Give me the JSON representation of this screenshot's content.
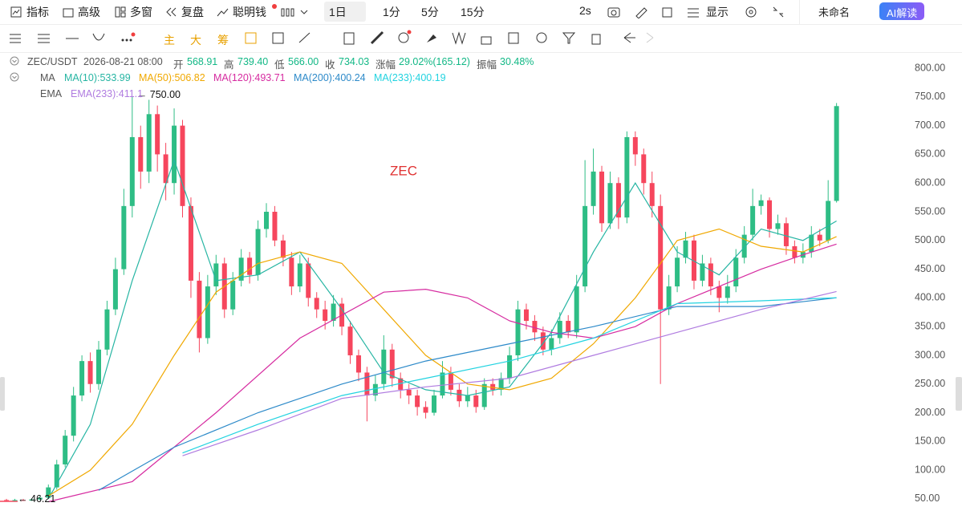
{
  "toolbar": {
    "top": [
      "指标",
      "高级",
      "多窗",
      "复盘",
      "聪明钱"
    ],
    "interval": "1日",
    "intervals": [
      "1分",
      "5分",
      "15分"
    ],
    "refresh": "2s",
    "display": "显示",
    "layout": "未命名",
    "ai": "AI解读"
  },
  "drawing_toolbar": {
    "main": "主",
    "big": "大",
    "chips": "筹"
  },
  "info": {
    "symbol": "ZEC/USDT",
    "time": "2026-08-21 08:00",
    "fields": [
      {
        "label": "开",
        "value": "568.91"
      },
      {
        "label": "高",
        "value": "739.40"
      },
      {
        "label": "低",
        "value": "566.00"
      },
      {
        "label": "收",
        "value": "734.03"
      },
      {
        "label": "涨幅",
        "value": "29.02%(165.12)"
      },
      {
        "label": "振幅",
        "value": "30.48%"
      }
    ],
    "ma_label": "MA",
    "ma_items": [
      "MA(10):533.99",
      "MA(50):506.82",
      "MA(120):493.71",
      "MA(200):400.24",
      "MA(233):400.19"
    ],
    "ema_label": "EMA",
    "ema_items": [
      "EMA(233):411.1"
    ]
  },
  "chart_data": {
    "type": "candlestick",
    "title": "ZEC",
    "up_color": "#2ebd85",
    "down_color": "#f6465d",
    "grid": false,
    "open": [
      48,
      47,
      48,
      47,
      49,
      52,
      70,
      110,
      160,
      230,
      290,
      250,
      310,
      380,
      450,
      560,
      680,
      620,
      720,
      650,
      600,
      700,
      560,
      430,
      330,
      420,
      460,
      380,
      430,
      470,
      440,
      520,
      550,
      500,
      470,
      420,
      460,
      400,
      380,
      360,
      390,
      350,
      300,
      270,
      230,
      250,
      310,
      260,
      240,
      230,
      210,
      200,
      230,
      270,
      240,
      220,
      230,
      210,
      250,
      240,
      260,
      300,
      380,
      360,
      340,
      310,
      330,
      360,
      340,
      420,
      560,
      620,
      530,
      600,
      540,
      680,
      650,
      600,
      560,
      380,
      420,
      470,
      500,
      430,
      460,
      420,
      400,
      420,
      470,
      510,
      560,
      570,
      520,
      530,
      490,
      470,
      480,
      510,
      500,
      568.91
    ],
    "high": [
      50,
      50,
      50,
      51,
      56,
      75,
      118,
      170,
      245,
      300,
      305,
      325,
      395,
      470,
      590,
      750,
      700,
      745,
      735,
      670,
      730,
      710,
      575,
      445,
      440,
      475,
      470,
      445,
      485,
      480,
      535,
      565,
      560,
      510,
      480,
      475,
      470,
      410,
      395,
      405,
      400,
      360,
      310,
      280,
      265,
      335,
      320,
      270,
      250,
      240,
      220,
      240,
      290,
      280,
      250,
      245,
      240,
      260,
      260,
      270,
      315,
      395,
      390,
      370,
      350,
      345,
      375,
      370,
      440,
      640,
      660,
      630,
      620,
      610,
      690,
      690,
      660,
      620,
      580,
      440,
      490,
      515,
      510,
      475,
      470,
      430,
      440,
      485,
      525,
      590,
      580,
      575,
      545,
      540,
      500,
      495,
      525,
      520,
      605,
      739.4
    ],
    "low": [
      46.21,
      46.5,
      46.5,
      46.5,
      48,
      50,
      66,
      105,
      150,
      220,
      235,
      240,
      300,
      370,
      440,
      540,
      590,
      600,
      620,
      570,
      580,
      540,
      400,
      305,
      320,
      405,
      365,
      370,
      420,
      425,
      430,
      505,
      490,
      455,
      405,
      410,
      385,
      365,
      345,
      350,
      335,
      285,
      255,
      185,
      220,
      240,
      245,
      225,
      215,
      195,
      190,
      195,
      225,
      230,
      210,
      210,
      200,
      205,
      230,
      230,
      250,
      290,
      345,
      325,
      300,
      300,
      320,
      330,
      330,
      410,
      545,
      515,
      520,
      520,
      530,
      630,
      580,
      540,
      250,
      370,
      410,
      460,
      415,
      420,
      405,
      375,
      390,
      410,
      460,
      500,
      545,
      505,
      510,
      475,
      460,
      460,
      470,
      490,
      495,
      566
    ],
    "close": [
      47,
      48,
      47,
      49,
      52,
      70,
      110,
      160,
      230,
      290,
      250,
      310,
      380,
      450,
      560,
      680,
      620,
      720,
      650,
      600,
      700,
      560,
      430,
      330,
      420,
      460,
      380,
      430,
      470,
      440,
      520,
      550,
      500,
      470,
      420,
      460,
      400,
      380,
      360,
      390,
      350,
      300,
      270,
      230,
      250,
      310,
      260,
      240,
      230,
      210,
      200,
      230,
      270,
      240,
      220,
      230,
      210,
      250,
      240,
      260,
      300,
      380,
      360,
      340,
      310,
      330,
      360,
      340,
      420,
      560,
      620,
      530,
      600,
      540,
      680,
      650,
      600,
      560,
      380,
      420,
      470,
      500,
      430,
      460,
      420,
      400,
      420,
      470,
      510,
      560,
      570,
      520,
      530,
      490,
      470,
      480,
      510,
      500,
      568.91,
      734.03
    ],
    "xlim": [
      -0.77,
      107.36
    ],
    "ylim": [
      1,
      828
    ],
    "yticks": [
      {
        "value": 800,
        "label": "800.00"
      },
      {
        "value": 750,
        "label": "750.00"
      },
      {
        "value": 700,
        "label": "700.00"
      },
      {
        "value": 650,
        "label": "650.00"
      },
      {
        "value": 600,
        "label": "600.00"
      },
      {
        "value": 550,
        "label": "550.00"
      },
      {
        "value": 500,
        "label": "500.00"
      },
      {
        "value": 450,
        "label": "450.00"
      },
      {
        "value": 400,
        "label": "400.00"
      },
      {
        "value": 350,
        "label": "350.00"
      },
      {
        "value": 300,
        "label": "300.00"
      },
      {
        "value": 250,
        "label": "250.00"
      },
      {
        "value": 200,
        "label": "200.00"
      },
      {
        "value": 150,
        "label": "150.00"
      },
      {
        "value": 100,
        "label": "100.00"
      },
      {
        "value": 50,
        "label": "50.00"
      }
    ],
    "overlays": [
      {
        "color": "#26b5a3",
        "x": [
          5,
          10,
          15,
          20,
          25,
          30,
          35,
          40,
          45,
          50,
          55,
          60,
          65,
          70,
          75,
          80,
          85,
          90,
          95,
          99
        ],
        "values": [
          50,
          180,
          430,
          640,
          430,
          440,
          480,
          380,
          270,
          240,
          230,
          245,
          340,
          480,
          600,
          480,
          440,
          520,
          500,
          533.99
        ]
      },
      {
        "color": "#f0a800",
        "x": [
          5,
          10,
          15,
          20,
          25,
          30,
          35,
          40,
          45,
          50,
          55,
          60,
          65,
          70,
          75,
          80,
          85,
          90,
          95,
          99
        ],
        "values": [
          55,
          100,
          180,
          300,
          410,
          460,
          480,
          460,
          380,
          300,
          250,
          240,
          260,
          320,
          400,
          500,
          520,
          490,
          480,
          506.82
        ]
      },
      {
        "color": "#d62ba0",
        "x": [
          5,
          15,
          25,
          35,
          45,
          50,
          55,
          60,
          65,
          70,
          75,
          80,
          85,
          90,
          95,
          99
        ],
        "values": [
          45,
          80,
          200,
          330,
          410,
          415,
          400,
          360,
          340,
          330,
          350,
          390,
          420,
          450,
          475,
          493.71
        ]
      },
      {
        "color": "#2d8ac9",
        "x": [
          11,
          20,
          30,
          40,
          50,
          60,
          70,
          80,
          90,
          99
        ],
        "values": [
          65,
          140,
          200,
          250,
          290,
          320,
          350,
          385,
          385,
          400.24
        ]
      },
      {
        "color": "#22d3e0",
        "x": [
          21,
          30,
          40,
          50,
          60,
          70,
          80,
          90,
          99
        ],
        "values": [
          130,
          180,
          230,
          260,
          290,
          330,
          390,
          395,
          400.19
        ]
      },
      {
        "color": "#b07ce0",
        "x": [
          21,
          30,
          40,
          50,
          60,
          70,
          80,
          90,
          99
        ],
        "values": [
          125,
          170,
          225,
          245,
          260,
          300,
          340,
          380,
          411.1
        ]
      }
    ],
    "max_label": "← 750.00",
    "min_label": "← 46.21"
  }
}
